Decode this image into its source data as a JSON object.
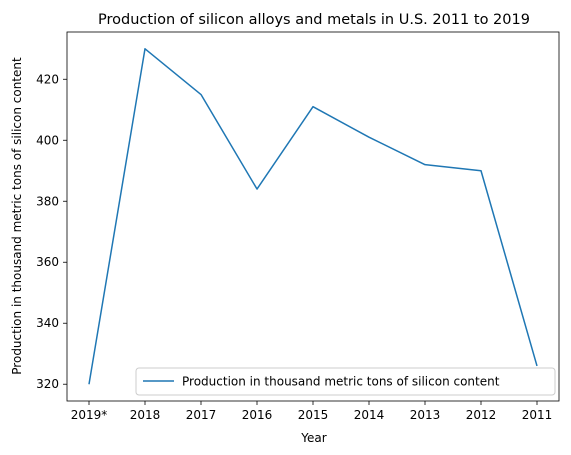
{
  "chart_data": {
    "type": "line",
    "title": "Production of silicon alloys and metals in U.S. 2011 to 2019",
    "xlabel": "Year",
    "ylabel": "Production in thousand metric tons of silicon content",
    "categories": [
      "2019*",
      "2018",
      "2017",
      "2016",
      "2015",
      "2014",
      "2013",
      "2012",
      "2011"
    ],
    "series": [
      {
        "name": "Production in thousand metric tons of silicon content",
        "values": [
          320,
          430,
          415,
          384,
          411,
          401,
          392,
          390,
          326
        ],
        "color": "#1f77b4"
      }
    ],
    "ylim": [
      314.5,
      435.5
    ],
    "yticks": [
      320,
      340,
      360,
      380,
      400,
      420
    ],
    "grid": false,
    "legend": "lower-right"
  }
}
